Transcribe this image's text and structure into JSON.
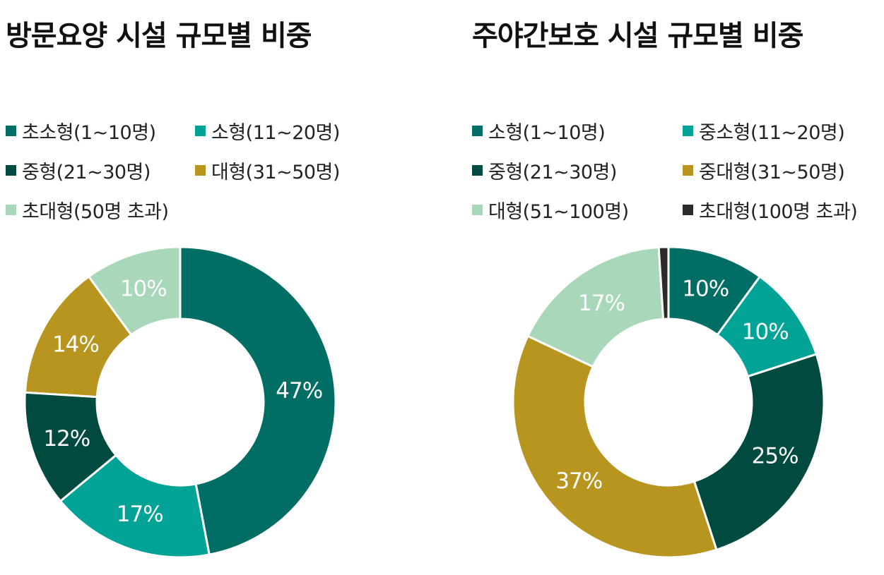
{
  "chart_data": [
    {
      "type": "pie",
      "title": "방문요양 시설 규모별 비중",
      "categories": [
        "초소형(1~10명)",
        "소형(11~20명)",
        "중형(21~30명)",
        "대형(31~50명)",
        "초대형(50명 초과)"
      ],
      "values": [
        47,
        17,
        12,
        14,
        10
      ],
      "labels": [
        "47%",
        "17%",
        "12%",
        "14%",
        "10%"
      ],
      "colors": [
        "#006e64",
        "#00a396",
        "#004a40",
        "#b8951f",
        "#a8d8b9"
      ],
      "legend_position": "top"
    },
    {
      "type": "pie",
      "title": "주야간보호 시설 규모별 비중",
      "categories": [
        "소형(1~10명)",
        "중소형(11~20명)",
        "중형(21~30명)",
        "중대형(31~50명)",
        "대형(51~100명)",
        "초대형(100명 초과)"
      ],
      "values": [
        10,
        10,
        25,
        37,
        17,
        1
      ],
      "labels": [
        "10%",
        "10%",
        "25%",
        "37%",
        "17%",
        ""
      ],
      "colors": [
        "#006e64",
        "#00a396",
        "#004a40",
        "#b8951f",
        "#a8d8b9",
        "#2b2b2b"
      ],
      "legend_position": "top"
    }
  ]
}
